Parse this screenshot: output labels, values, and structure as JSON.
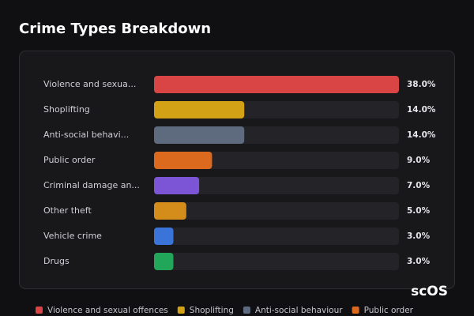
{
  "chart_data": {
    "type": "hbar",
    "title": "Crime Types Breakdown",
    "categories": [
      "Violence and sexua...",
      "Shoplifting",
      "Anti-social behavi...",
      "Public order",
      "Criminal damage an...",
      "Other theft",
      "Vehicle crime",
      "Drugs"
    ],
    "values": [
      38,
      14,
      14,
      9,
      7,
      5,
      3,
      3
    ],
    "value_labels": [
      "38.0%",
      "14.0%",
      "14.0%",
      "9.0%",
      "7.0%",
      "5.0%",
      "3.0%",
      "3.0%"
    ],
    "colors": [
      "#d94545",
      "#d2a116",
      "#5e6a7e",
      "#dc6a1e",
      "#7b55d6",
      "#d48d1a",
      "#3a74d8",
      "#22a65a"
    ],
    "xlim": [
      0,
      38
    ],
    "legend": [
      {
        "name": "Violence and sexual offences",
        "color": "#d94545"
      },
      {
        "name": "Shoplifting",
        "color": "#d2a116"
      },
      {
        "name": "Anti-social behaviour",
        "color": "#5e6a7e"
      },
      {
        "name": "Public order",
        "color": "#dc6a1e"
      }
    ],
    "watermark": "scOS"
  }
}
